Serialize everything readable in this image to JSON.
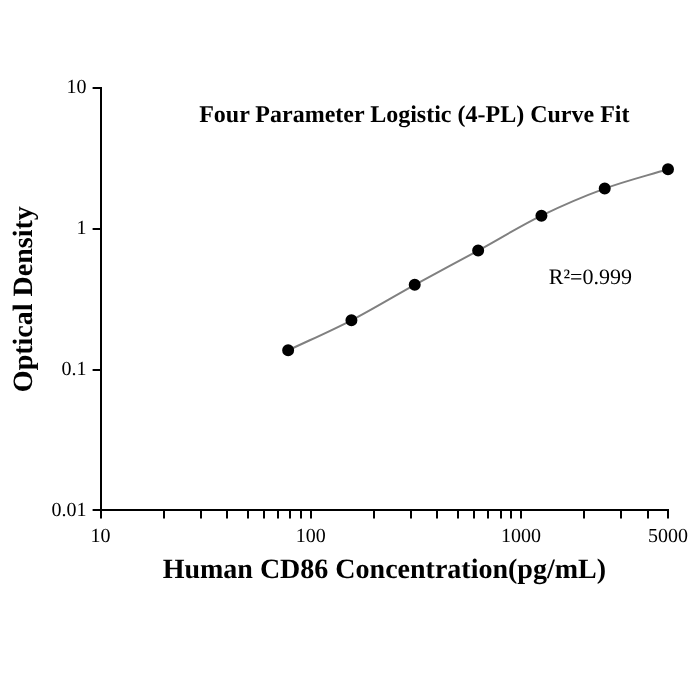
{
  "chart_data": {
    "type": "scatter",
    "title": "Four Parameter Logistic (4-PL) Curve Fit",
    "xlabel": "Human CD86 Concentration(pg/mL)",
    "ylabel": "Optical Density",
    "annotations": [
      "R²=0.999"
    ],
    "log": "xy",
    "xlim": [
      10,
      5000
    ],
    "ylim": [
      0.01,
      10
    ],
    "xticks": [
      10,
      {
        "value": 20,
        "label": null
      },
      {
        "value": 30,
        "label": null
      },
      {
        "value": 40,
        "label": null
      },
      {
        "value": 50,
        "label": null
      },
      {
        "value": 60,
        "label": null
      },
      {
        "value": 70,
        "label": null
      },
      {
        "value": 80,
        "label": null
      },
      {
        "value": 90,
        "label": null
      },
      100,
      {
        "value": 200,
        "label": null
      },
      {
        "value": 300,
        "label": null
      },
      {
        "value": 400,
        "label": null
      },
      {
        "value": 500,
        "label": null
      },
      {
        "value": 600,
        "label": null
      },
      {
        "value": 700,
        "label": null
      },
      {
        "value": 800,
        "label": null
      },
      {
        "value": 900,
        "label": null
      },
      1000,
      {
        "value": 2000,
        "label": null
      },
      {
        "value": 3000,
        "label": null
      },
      {
        "value": 4000,
        "label": null
      },
      5000
    ],
    "yticks": [
      0.01,
      0.1,
      1,
      10
    ],
    "grid": false,
    "legend": false,
    "series": [
      {
        "type": "scatter",
        "color": "#000000",
        "marker": "circle",
        "x": [
          78,
          156,
          312,
          625,
          1250,
          2500,
          5000
        ],
        "values": [
          0.137,
          0.224,
          0.4,
          0.7,
          1.24,
          1.93,
          2.65
        ]
      },
      {
        "type": "line",
        "color": "#808080",
        "marker": "none",
        "line_style": "solid",
        "x": [
          78,
          156,
          312,
          625,
          1250,
          2500,
          5000
        ],
        "values": [
          0.137,
          0.224,
          0.4,
          0.7,
          1.24,
          1.93,
          2.65
        ]
      }
    ]
  }
}
